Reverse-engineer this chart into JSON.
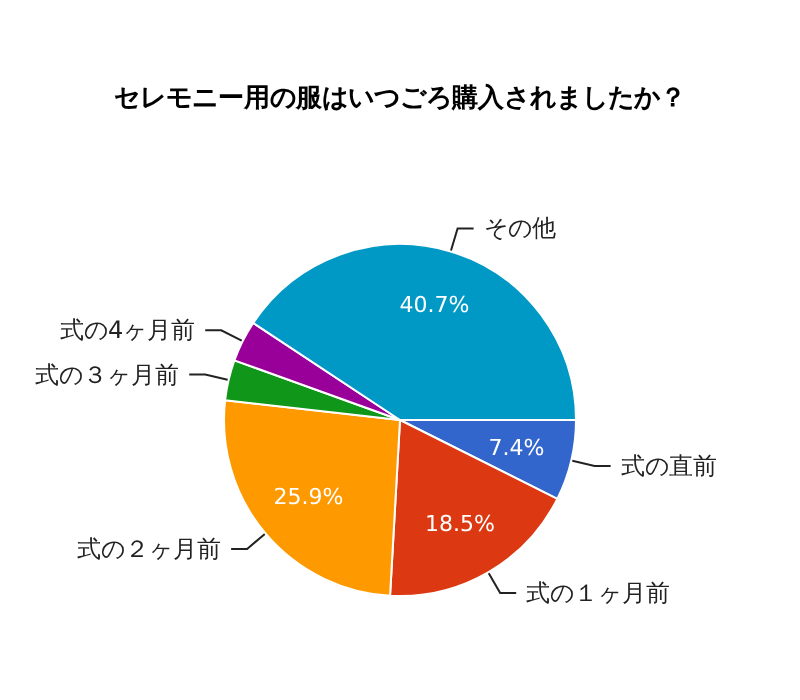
{
  "chart_data": {
    "type": "pie",
    "title": "セレモニー用の服はいつごろ購入されましたか？",
    "categories": [
      "式の直前",
      "式の１ヶ月前",
      "式の２ヶ月前",
      "式の３ヶ月前",
      "式の4ヶ月前",
      "その他"
    ],
    "values": [
      7.4,
      18.5,
      25.9,
      3.7,
      3.8,
      40.7
    ],
    "value_labels": [
      "7.4%",
      "18.5%",
      "25.9%",
      null,
      null,
      "40.7%"
    ],
    "colors": [
      "#3366cc",
      "#dc3912",
      "#ff9900",
      "#109618",
      "#990099",
      "#0099c6"
    ],
    "legend": false
  }
}
